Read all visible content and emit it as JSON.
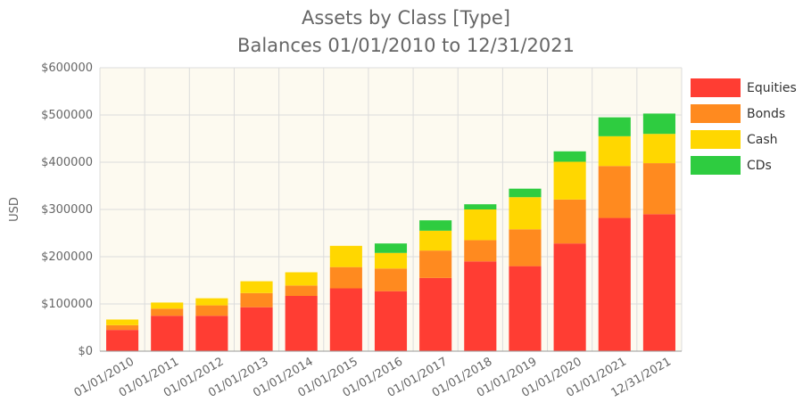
{
  "chart_data": {
    "type": "bar",
    "stacked": true,
    "title": "Assets by Class [Type]",
    "subtitle": "Balances 01/01/2010 to 12/31/2021",
    "xlabel": "",
    "ylabel": "USD",
    "ylim": [
      0,
      600000
    ],
    "y_ticks": [
      "$0",
      "$100000",
      "$200000",
      "$300000",
      "$400000",
      "$500000",
      "$600000"
    ],
    "y_tick_values": [
      0,
      100000,
      200000,
      300000,
      400000,
      500000,
      600000
    ],
    "grid": true,
    "legend_position": "right",
    "plot_background": "#fdfaf0",
    "categories": [
      "01/01/2010",
      "01/01/2011",
      "01/01/2012",
      "01/01/2013",
      "01/01/2014",
      "01/01/2015",
      "01/01/2016",
      "01/01/2017",
      "01/01/2018",
      "01/01/2019",
      "01/01/2020",
      "01/01/2021",
      "12/31/2021"
    ],
    "series": [
      {
        "name": "Equities",
        "color": "#ff3d33",
        "values": [
          45000,
          75000,
          75000,
          93000,
          117000,
          133000,
          127000,
          155000,
          190000,
          180000,
          228000,
          282000,
          290000
        ]
      },
      {
        "name": "Bonds",
        "color": "#ff8a1f",
        "values": [
          10000,
          15000,
          22000,
          30000,
          22000,
          45000,
          48000,
          58000,
          45000,
          78000,
          93000,
          110000,
          108000
        ]
      },
      {
        "name": "Cash",
        "color": "#ffd700",
        "values": [
          12000,
          13000,
          15000,
          25000,
          28000,
          45000,
          33000,
          42000,
          65000,
          68000,
          80000,
          63000,
          62000
        ]
      },
      {
        "name": "CDs",
        "color": "#2ecc40",
        "values": [
          0,
          0,
          0,
          0,
          0,
          0,
          20000,
          22000,
          11000,
          18000,
          22000,
          40000,
          43000
        ]
      }
    ]
  }
}
